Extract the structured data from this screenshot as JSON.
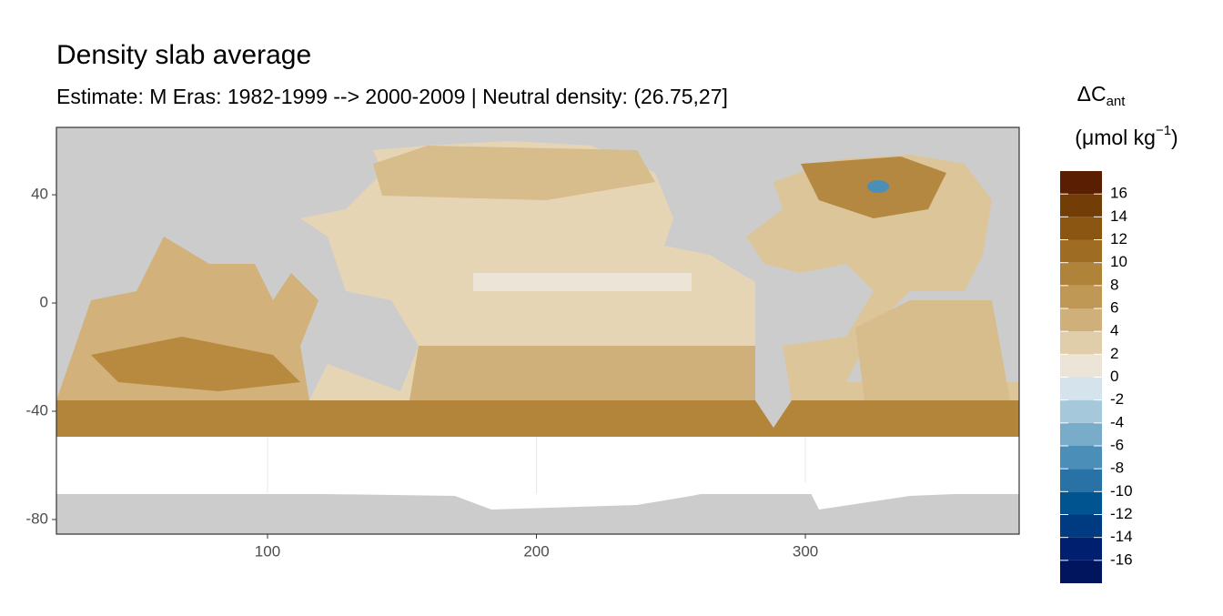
{
  "chart_data": {
    "type": "map",
    "title": "Density slab average",
    "subtitle": "Estimate: M Eras: 1982-1999 --> 2000-2009 | Neutral density: (26.75,27]",
    "xlim": [
      21.5,
      379.5
    ],
    "ylim": [
      -85.4,
      64.9
    ],
    "xticks": [
      100,
      200,
      300
    ],
    "yticks": [
      40,
      0,
      -40,
      -80
    ],
    "grid": true,
    "legend": {
      "title": "ΔC",
      "title_sub": "ant",
      "unit": "(μmol kg",
      "unit_exp": "−1",
      "unit_close": ")",
      "breaks": [
        -18,
        -16,
        -14,
        -12,
        -10,
        -8,
        -6,
        -4,
        -2,
        0,
        2,
        4,
        6,
        8,
        10,
        12,
        14,
        16,
        18
      ],
      "colors": [
        "#00155e",
        "#001f6e",
        "#003a80",
        "#005591",
        "#2872a6",
        "#4b8fb8",
        "#78acc9",
        "#a5c8db",
        "#d4e3ec",
        "#ece4d7",
        "#e0cda9",
        "#cfb07a",
        "#bf9856",
        "#b0833a",
        "#9f6c23",
        "#8b5512",
        "#733d07",
        "#5a1f02"
      ],
      "ticks": [
        -16,
        -14,
        -12,
        -10,
        -8,
        -6,
        -4,
        -2,
        0,
        2,
        4,
        6,
        8,
        10,
        12,
        14,
        16
      ]
    }
  }
}
